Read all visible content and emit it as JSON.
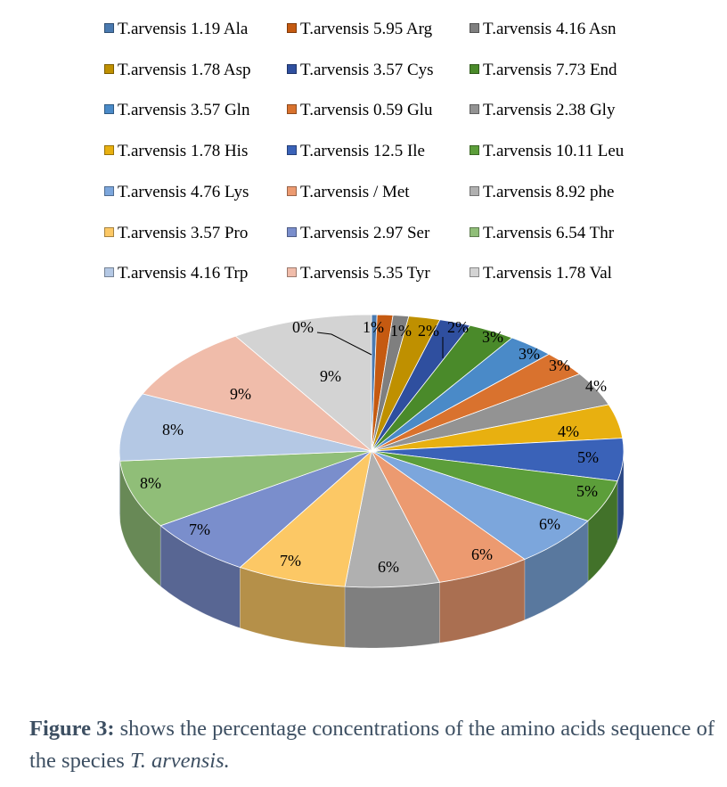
{
  "chart_data": {
    "type": "pie",
    "style": "3d",
    "legend_position": "top",
    "series": [
      {
        "name": "T.arvensis 1.19 Ala",
        "value": 0,
        "label": "0%",
        "color": "#4a7ab0"
      },
      {
        "name": "T.arvensis 5.95 Arg",
        "value": 1,
        "label": "1%",
        "color": "#c55a11"
      },
      {
        "name": "T.arvensis 4.16 Asn",
        "value": 1,
        "label": "1%",
        "color": "#7f7f7f"
      },
      {
        "name": "T.arvensis 1.78 Asp",
        "value": 2,
        "label": "2%",
        "color": "#bf9000"
      },
      {
        "name": "T.arvensis 3.57 Cys",
        "value": 2,
        "label": "2%",
        "color": "#2f4f9f"
      },
      {
        "name": "T.arvensis 7.73 End",
        "value": 3,
        "label": "3%",
        "color": "#4a8a2a"
      },
      {
        "name": "T.arvensis 3.57 Gln",
        "value": 3,
        "label": "3%",
        "color": "#4a8ac8"
      },
      {
        "name": "T.arvensis 0.59 Glu",
        "value": 3,
        "label": "3%",
        "color": "#d9722e"
      },
      {
        "name": "T.arvensis 2.38 Gly",
        "value": 4,
        "label": "4%",
        "color": "#939393"
      },
      {
        "name": "T.arvensis 1.78 His",
        "value": 4,
        "label": "4%",
        "color": "#e8b010"
      },
      {
        "name": "T.arvensis 12.5 Ile",
        "value": 5,
        "label": "5%",
        "color": "#3a62b8"
      },
      {
        "name": "T.arvensis 10.11 Leu",
        "value": 5,
        "label": "5%",
        "color": "#5c9e3a"
      },
      {
        "name": "T.arvensis 4.76 Lys",
        "value": 6,
        "label": "6%",
        "color": "#7ca6dc"
      },
      {
        "name": "T.arvensis / Met",
        "value": 6,
        "label": "6%",
        "color": "#ec9a70"
      },
      {
        "name": "T.arvensis 8.92 phe",
        "value": 6,
        "label": "6%",
        "color": "#b0b0b0"
      },
      {
        "name": "T.arvensis 3.57 Pro",
        "value": 7,
        "label": "7%",
        "color": "#fcc865"
      },
      {
        "name": "T.arvensis 2.97 Ser",
        "value": 7,
        "label": "7%",
        "color": "#7a8ecc"
      },
      {
        "name": "T.arvensis 6.54 Thr",
        "value": 8,
        "label": "8%",
        "color": "#90be78"
      },
      {
        "name": "T.arvensis 4.16 Trp",
        "value": 8,
        "label": "8%",
        "color": "#b4c8e4"
      },
      {
        "name": "T.arvensis 5.35 Tyr",
        "value": 9,
        "label": "9%",
        "color": "#f0bcaa"
      },
      {
        "name": "T.arvensis 1.78 Val",
        "value": 9,
        "label": "9%",
        "color": "#d3d3d3"
      }
    ]
  },
  "caption": {
    "label": "Figure 3:",
    "text_before": " shows the percentage concentrations of the amino acids sequence of the species ",
    "species": "T. arvensis."
  }
}
